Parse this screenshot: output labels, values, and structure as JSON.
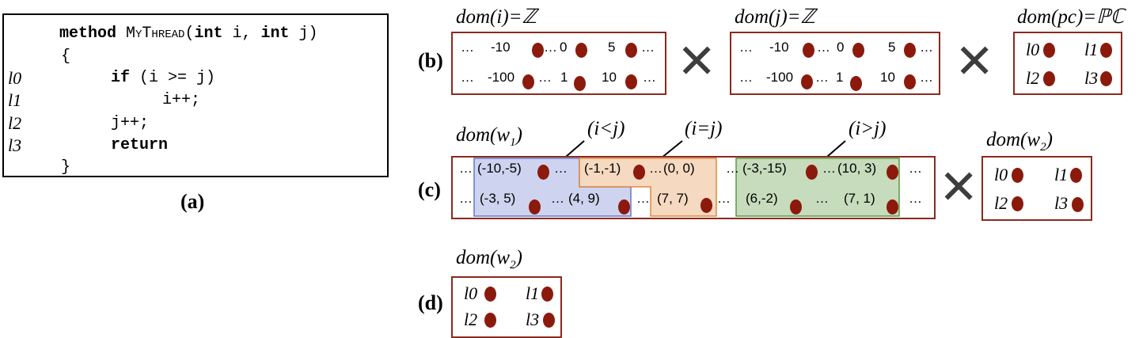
{
  "panel_a": {
    "label": "(a)",
    "sig_method": "method",
    "sig_name": "MyThread",
    "sig_open": "(",
    "sig_int1": "int",
    "sig_i": " i, ",
    "sig_int2": "int",
    "sig_j": " j)",
    "brace_open": "{",
    "line_if": "if",
    "line_if_cond": " (i >= j)",
    "line_inc_i": "i++;",
    "line_inc_j": "j++;",
    "line_return": "return",
    "brace_close": "}",
    "labels": [
      "l0",
      "l1",
      "l2",
      "l3"
    ]
  },
  "panel_b": {
    "label": "(b)",
    "dom_i": "dom(i)=ℤ",
    "dom_j": "dom(j)=ℤ",
    "dom_pc": "dom(pc)=ℙℂ",
    "row1": [
      "…",
      "-10",
      "…",
      "0",
      "5",
      "…"
    ],
    "row2": [
      "…",
      "-100",
      "…",
      "1",
      "10",
      "…"
    ],
    "pc": [
      "l0",
      "l1",
      "l2",
      "l3"
    ],
    "times": "✕"
  },
  "panel_c": {
    "label": "(c)",
    "dom_w1": "dom(w",
    "dom_w1_sub": "1",
    "dom_w1_close": ")",
    "dom_w2": "dom(w",
    "dom_w2_sub": "2",
    "dom_w2_close": ")",
    "cond_lt": "(i<j)",
    "cond_eq": "(i=j)",
    "cond_gt": "(i>j)",
    "ellipsis": "…",
    "blue": [
      "(-10,-5)",
      "(-3, 5)",
      "(4, 9)"
    ],
    "orange": [
      "(-1,-1)",
      "(0, 0)",
      "(7, 7)"
    ],
    "green": [
      "(-3,-15)",
      "(10, 3)",
      "(6,-2)",
      "(7, 1)"
    ],
    "pc": [
      "l0",
      "l1",
      "l2",
      "l3"
    ],
    "times": "✕",
    "region_colors": {
      "blue": "#c6cdec",
      "blue_border": "#6677cc",
      "orange": "#f3d2b6",
      "orange_border": "#e08a3c",
      "green": "#bcd6b0",
      "green_border": "#5a9a45"
    }
  },
  "panel_d": {
    "label": "(d)",
    "dom_w2": "dom(w",
    "dom_w2_sub": "2",
    "dom_w2_close": ")",
    "pc": [
      "l0",
      "l1",
      "l2",
      "l3"
    ]
  }
}
